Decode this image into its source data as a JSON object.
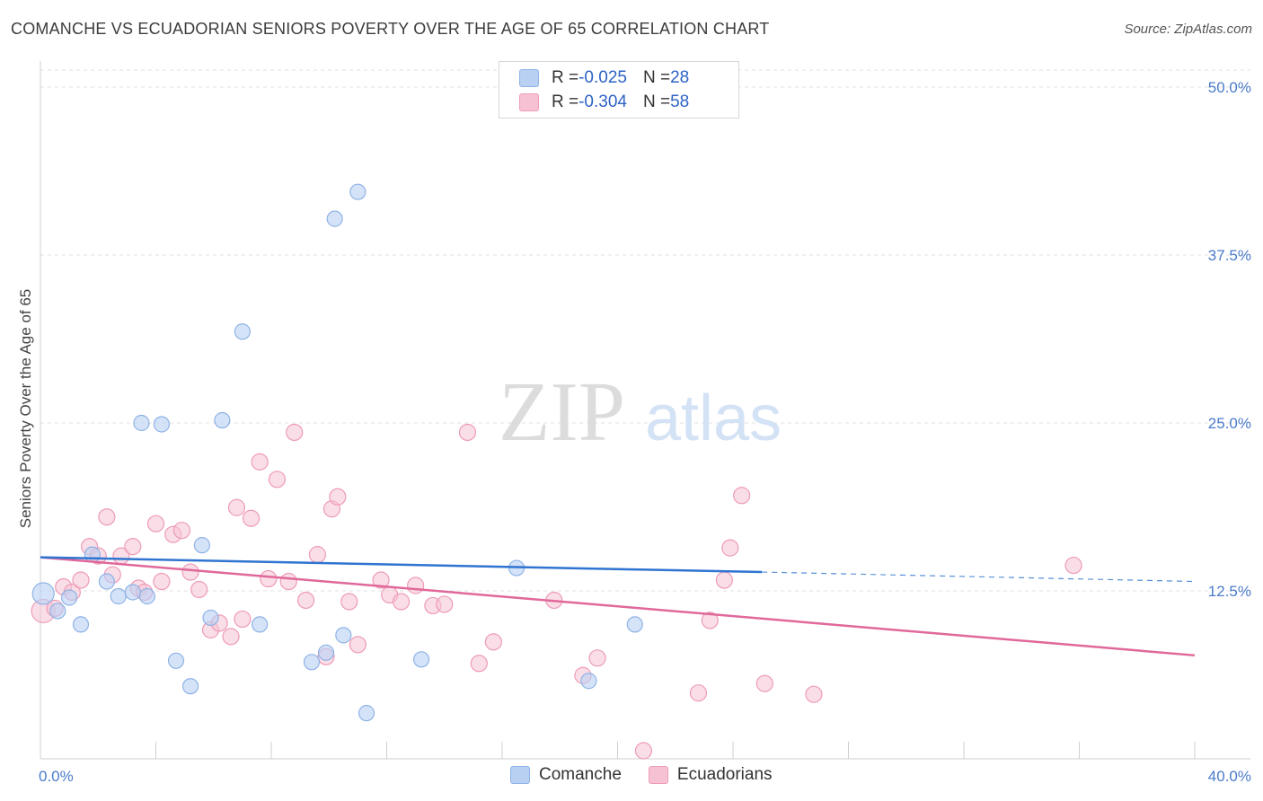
{
  "header": {
    "title": "COMANCHE VS ECUADORIAN SENIORS POVERTY OVER THE AGE OF 65 CORRELATION CHART",
    "source": "Source: ZipAtlas.com"
  },
  "legend": {
    "rows": [
      {
        "r_label": "R = ",
        "r_value": "-0.025",
        "n_label": "N = ",
        "n_value": "28"
      },
      {
        "r_label": "R = ",
        "r_value": "-0.304",
        "n_label": "N = ",
        "n_value": "58"
      }
    ]
  },
  "watermark": {
    "zip": "ZIP",
    "atlas": "atlas"
  },
  "colors": {
    "comanche_fill": "#b8d1f3",
    "comanche_stroke": "#8fb3e6",
    "comanche_line": "#2f74d0",
    "ecuadorian_fill": "#f6c2d3",
    "ecuadorian_stroke": "#ee9bb6",
    "ecuadorian_line": "#e0689a"
  },
  "chart_data": {
    "type": "scatter",
    "title": "COMANCHE VS ECUADORIAN SENIORS POVERTY OVER THE AGE OF 65 CORRELATION CHART",
    "xlabel": "",
    "ylabel": "Seniors Poverty Over the Age of 65",
    "xlim": [
      0,
      40
    ],
    "ylim": [
      0,
      50
    ],
    "x_ticks": [
      "0.0%",
      "40.0%"
    ],
    "y_ticks": [
      {
        "value": 12.5,
        "label": "12.5%"
      },
      {
        "value": 25.0,
        "label": "25.0%"
      },
      {
        "value": 37.5,
        "label": "37.5%"
      },
      {
        "value": 50.0,
        "label": "50.0%"
      }
    ],
    "grid": true,
    "legend_position": "top-center",
    "series": [
      {
        "name": "Comanche",
        "r": -0.025,
        "n": 28,
        "trend": {
          "x0": 0,
          "y0": 15.0,
          "x1": 25.0,
          "y1": 13.9,
          "x_dash_end": 40,
          "y_dash_end": 13.2
        },
        "points": [
          [
            0.1,
            12.3
          ],
          [
            0.6,
            11.0
          ],
          [
            1.0,
            12.0
          ],
          [
            1.4,
            10.0
          ],
          [
            1.8,
            15.2
          ],
          [
            2.3,
            13.2
          ],
          [
            2.7,
            12.1
          ],
          [
            3.2,
            12.4
          ],
          [
            3.5,
            25.0
          ],
          [
            3.7,
            12.1
          ],
          [
            4.2,
            24.9
          ],
          [
            4.7,
            7.3
          ],
          [
            5.2,
            5.4
          ],
          [
            5.6,
            15.9
          ],
          [
            5.9,
            10.5
          ],
          [
            6.3,
            25.2
          ],
          [
            7.0,
            31.8
          ],
          [
            7.6,
            10.0
          ],
          [
            9.4,
            7.2
          ],
          [
            9.9,
            7.9
          ],
          [
            10.2,
            40.2
          ],
          [
            10.5,
            9.2
          ],
          [
            11.0,
            42.2
          ],
          [
            11.3,
            3.4
          ],
          [
            13.2,
            7.4
          ],
          [
            16.5,
            14.2
          ],
          [
            19.0,
            5.8
          ],
          [
            20.6,
            10.0
          ]
        ]
      },
      {
        "name": "Ecuadorians",
        "r": -0.304,
        "n": 58,
        "trend": {
          "x0": 0,
          "y0": 15.0,
          "x1": 40,
          "y1": 7.7
        },
        "points": [
          [
            0.1,
            11.0
          ],
          [
            0.5,
            11.2
          ],
          [
            0.8,
            12.8
          ],
          [
            1.1,
            12.4
          ],
          [
            1.4,
            13.3
          ],
          [
            1.7,
            15.8
          ],
          [
            2.0,
            15.1
          ],
          [
            2.3,
            18.0
          ],
          [
            2.5,
            13.7
          ],
          [
            2.8,
            15.1
          ],
          [
            3.2,
            15.8
          ],
          [
            3.4,
            12.7
          ],
          [
            3.6,
            12.4
          ],
          [
            4.0,
            17.5
          ],
          [
            4.2,
            13.2
          ],
          [
            4.6,
            16.7
          ],
          [
            4.9,
            17.0
          ],
          [
            5.2,
            13.9
          ],
          [
            5.5,
            12.6
          ],
          [
            5.9,
            9.6
          ],
          [
            6.2,
            10.1
          ],
          [
            6.6,
            9.1
          ],
          [
            6.8,
            18.7
          ],
          [
            7.0,
            10.4
          ],
          [
            7.3,
            17.9
          ],
          [
            7.6,
            22.1
          ],
          [
            7.9,
            13.4
          ],
          [
            8.2,
            20.8
          ],
          [
            8.6,
            13.2
          ],
          [
            8.8,
            24.3
          ],
          [
            9.2,
            11.8
          ],
          [
            9.6,
            15.2
          ],
          [
            9.9,
            7.6
          ],
          [
            10.1,
            18.6
          ],
          [
            10.3,
            19.5
          ],
          [
            10.7,
            11.7
          ],
          [
            11.0,
            8.5
          ],
          [
            11.8,
            13.3
          ],
          [
            12.1,
            12.2
          ],
          [
            12.5,
            11.7
          ],
          [
            13.0,
            12.9
          ],
          [
            13.6,
            11.4
          ],
          [
            14.0,
            11.5
          ],
          [
            14.8,
            24.3
          ],
          [
            15.2,
            7.1
          ],
          [
            15.7,
            8.7
          ],
          [
            17.8,
            11.8
          ],
          [
            18.8,
            6.2
          ],
          [
            19.3,
            7.5
          ],
          [
            20.9,
            0.6
          ],
          [
            22.8,
            4.9
          ],
          [
            23.2,
            10.3
          ],
          [
            23.7,
            13.3
          ],
          [
            23.9,
            15.7
          ],
          [
            24.3,
            19.6
          ],
          [
            25.1,
            5.6
          ],
          [
            26.8,
            4.8
          ],
          [
            35.8,
            14.4
          ]
        ]
      }
    ]
  },
  "bottom_legend": {
    "items": [
      "Comanche",
      "Ecuadorians"
    ]
  }
}
